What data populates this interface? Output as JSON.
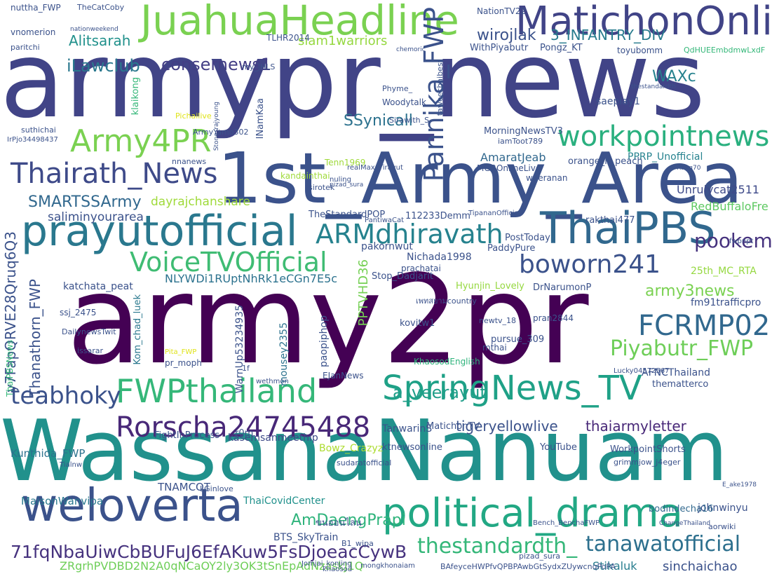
{
  "word_cloud": {
    "words": [
      {
        "text": "armypr_news",
        "color": "#414487"
      },
      {
        "text": "army2pr",
        "color": "#440154"
      },
      {
        "text": "WassanaNanuam",
        "color": "#21918c"
      },
      {
        "text": "1st_Army_Area",
        "color": "#3b528b"
      },
      {
        "text": "JuahuaHeadline",
        "color": "#7ad151"
      },
      {
        "text": "MatichonOnline",
        "color": "#414487"
      },
      {
        "text": "prayutofficial",
        "color": "#2a788e"
      },
      {
        "text": "ThaiPBS",
        "color": "#31688e"
      },
      {
        "text": "weloverta",
        "color": "#3b528b"
      },
      {
        "text": "political_drama",
        "color": "#22a884"
      },
      {
        "text": "FWPthailand",
        "color": "#35b779"
      },
      {
        "text": "SpringNews_TV",
        "color": "#1fa187"
      },
      {
        "text": "Rorscha24745488",
        "color": "#482878"
      },
      {
        "text": "workpointnews",
        "color": "#2ab07f"
      },
      {
        "text": "Army4PR",
        "color": "#7ad151"
      },
      {
        "text": "Thairath_News",
        "color": "#3e4a89"
      },
      {
        "text": "VoiceTVOfficial",
        "color": "#3fbc73"
      },
      {
        "text": "boworn241",
        "color": "#3b528b"
      },
      {
        "text": "ARMdhiravath",
        "color": "#26828e"
      },
      {
        "text": "FCRMP02",
        "color": "#31688e"
      },
      {
        "text": "Piyabutr_FWP",
        "color": "#6ece58"
      },
      {
        "text": "pookem",
        "color": "#46327e"
      },
      {
        "text": "teabhoky",
        "color": "#3b528b"
      },
      {
        "text": "Pannika_FWP",
        "color": "#3b528b"
      },
      {
        "text": "tanawatofficial",
        "color": "#2d708e"
      },
      {
        "text": "thestandardth_",
        "color": "#35b779"
      },
      {
        "text": "71fqNbaUiwCbBUFuJ6EfAKuw5FsDjoeacCywB",
        "color": "#46327e"
      },
      {
        "text": "a_veerayut",
        "color": "#1f9e89"
      },
      {
        "text": "AmDaengPrapi",
        "color": "#2fb47c"
      },
      {
        "text": "iLawclub",
        "color": "#2a788e"
      },
      {
        "text": "consernews1",
        "color": "#433e85"
      },
      {
        "text": "SSynicall",
        "color": "#2c728e"
      },
      {
        "text": "WAXc",
        "color": "#26828e"
      },
      {
        "text": "wirojlak",
        "color": "#3b528b"
      },
      {
        "text": "Alitsarah",
        "color": "#21918c"
      },
      {
        "text": "siam1warriors",
        "color": "#95d840"
      },
      {
        "text": "3_INFANTRY_DIV",
        "color": "#287c8e"
      },
      {
        "text": "army3news",
        "color": "#7ad151"
      },
      {
        "text": "SMARTSSArmy",
        "color": "#31688e"
      },
      {
        "text": "tigeryellowlive",
        "color": "#3b528b"
      },
      {
        "text": "thaiarmyletter",
        "color": "#482878"
      },
      {
        "text": "sinchaichao",
        "color": "#3b528b"
      },
      {
        "text": "Stikaluk",
        "color": "#287d8e"
      },
      {
        "text": "ZRgrhPVDBD2N2A0qNCaOY2ly3OK3tSnEpAdNzaskJ1Q",
        "color": "#6ece58"
      },
      {
        "text": "y7FapQRVE28Qruq6Q3",
        "color": "#3b528b"
      },
      {
        "text": "Thanathorn_FWP",
        "color": "#3b528b"
      },
      {
        "text": "NLYWDi1RUptNhRk1eCGn7E5c",
        "color": "#2c728e"
      },
      {
        "text": "PPTVHD36",
        "color": "#75d054"
      },
      {
        "text": "Unrulycat2511",
        "color": "#3e4a89"
      },
      {
        "text": "RedBuffaloFre",
        "color": "#5ec962"
      },
      {
        "text": "25th_MC_RTA",
        "color": "#95d840"
      },
      {
        "text": "fm91trafficpro",
        "color": "#3b528b"
      },
      {
        "text": "dayrajchanshare",
        "color": "#9fda3a"
      },
      {
        "text": "saliminyourarea",
        "color": "#3b528b"
      },
      {
        "text": "AmaratJeab",
        "color": "#31688e"
      },
      {
        "text": "PPRP_Unofficial",
        "color": "#26828e"
      },
      {
        "text": "Kunthida_FWP",
        "color": "#2c728e"
      },
      {
        "text": "MaisonWanvipa",
        "color": "#2a788e"
      },
      {
        "text": "johnwinyu",
        "color": "#3b528b"
      },
      {
        "text": "kasemsanmeethip",
        "color": "#3e4a89"
      },
      {
        "text": "TNAMCOT",
        "color": "#3b528b"
      },
      {
        "text": "BTS_SkyTrain",
        "color": "#3b528b"
      },
      {
        "text": "ThaiCovidCenter",
        "color": "#21918c"
      },
      {
        "text": "bodindecha16",
        "color": "#31688e"
      },
      {
        "text": "ktnewsonline",
        "color": "#3b528b"
      },
      {
        "text": "MatichonTV",
        "color": "#3b528b"
      },
      {
        "text": "TanwarinS",
        "color": "#3b528b"
      },
      {
        "text": "Bowz_Crazyz",
        "color": "#addc30"
      },
      {
        "text": "FightInProcess",
        "color": "#3b528b"
      },
      {
        "text": "YouTube",
        "color": "#3b528b"
      },
      {
        "text": "WorkpointShorts",
        "color": "#3b528b"
      },
      {
        "text": "AFNCThailand",
        "color": "#3b528b"
      },
      {
        "text": "thematterco",
        "color": "#3b528b"
      },
      {
        "text": "pursue_309",
        "color": "#3b528b"
      },
      {
        "text": "kovitw1",
        "color": "#3b528b"
      },
      {
        "text": "KhaosodEnglish",
        "color": "#2fb47c"
      },
      {
        "text": "DrNarumonP",
        "color": "#3b528b"
      },
      {
        "text": "Hyunjin_Lovely",
        "color": "#95d840"
      },
      {
        "text": "PaddyPure",
        "color": "#3b528b"
      },
      {
        "text": "PostToday",
        "color": "#3b528b"
      },
      {
        "text": "Nichada1998",
        "color": "#3b528b"
      },
      {
        "text": "pakornwut",
        "color": "#3b528b"
      },
      {
        "text": "Stop_Dadjarit",
        "color": "#3b528b"
      },
      {
        "text": "rakthai477",
        "color": "#3b528b"
      },
      {
        "text": "TheStandardPOP",
        "color": "#3b528b"
      },
      {
        "text": "112233Demm",
        "color": "#3b528b"
      },
      {
        "text": "sirotek",
        "color": "#3b528b"
      },
      {
        "text": "nuling",
        "color": "#3b528b"
      },
      {
        "text": "weeranan",
        "color": "#3b528b"
      },
      {
        "text": "orange_n_peach",
        "color": "#3b528b"
      },
      {
        "text": "MGROnlineLive",
        "color": "#3b528b"
      },
      {
        "text": "kandainthai",
        "color": "#9fda3a"
      },
      {
        "text": "Tenn1969",
        "color": "#9fda3a"
      },
      {
        "text": "katchata_peat",
        "color": "#3b528b"
      },
      {
        "text": "ssj_2475",
        "color": "#3b528b"
      },
      {
        "text": "issarar",
        "color": "#3b528b"
      },
      {
        "text": "pr_moph",
        "color": "#3b528b"
      },
      {
        "text": "Kom_chad_luek",
        "color": "#2a788e"
      },
      {
        "text": "WarnUp53234935",
        "color": "#3b528b"
      },
      {
        "text": "mousey2355",
        "color": "#2c728e"
      },
      {
        "text": "paopiphop",
        "color": "#3b528b"
      },
      {
        "text": "EJanNews",
        "color": "#3b528b"
      },
      {
        "text": "wethmon",
        "color": "#3b528b"
      },
      {
        "text": "1f",
        "color": "#3b528b"
      },
      {
        "text": "ThaiPBSNews",
        "color": "#35b779"
      },
      {
        "text": "Pita_FWP",
        "color": "#dfe318"
      },
      {
        "text": "nuttha_FWP",
        "color": "#3b528b"
      },
      {
        "text": "TheCatCoby",
        "color": "#3b528b"
      },
      {
        "text": "vnomerion",
        "color": "#3b528b"
      },
      {
        "text": "paritchi",
        "color": "#3b528b"
      },
      {
        "text": "nationweekend",
        "color": "#3b528b"
      },
      {
        "text": "TLHR2014",
        "color": "#3b528b"
      },
      {
        "text": "NationTV22",
        "color": "#3b528b"
      },
      {
        "text": "WithPiyabutr",
        "color": "#3b528b"
      },
      {
        "text": "Pongz_KT",
        "color": "#3b528b"
      },
      {
        "text": "toyubomm",
        "color": "#3b528b"
      },
      {
        "text": "QdHUEEmbdmwLxdF",
        "color": "#35b779"
      },
      {
        "text": "chemoric",
        "color": "#3b528b"
      },
      {
        "text": "my_JHLS",
        "color": "#3b528b"
      },
      {
        "text": "klaikong",
        "color": "#35b779"
      },
      {
        "text": "Phyme_",
        "color": "#3b528b"
      },
      {
        "text": "Woodytalk",
        "color": "#3b528b"
      },
      {
        "text": "iamToot789",
        "color": "#3b528b"
      },
      {
        "text": "saeplay1",
        "color": "#3b528b"
      },
      {
        "text": "MorningNewsTV3",
        "color": "#3b528b"
      },
      {
        "text": "Sirawith_S",
        "color": "#3b528b"
      },
      {
        "text": "taweechaibest",
        "color": "#3b528b"
      },
      {
        "text": "ArmyYamo302",
        "color": "#3b528b"
      },
      {
        "text": "INamKaa",
        "color": "#3b528b"
      },
      {
        "text": "suthichai",
        "color": "#3b528b"
      },
      {
        "text": "IrPjo34498437",
        "color": "#3b528b"
      },
      {
        "text": "nnanews",
        "color": "#3b528b"
      },
      {
        "text": "realMaxcTirayut",
        "color": "#3b528b"
      },
      {
        "text": "PantiwaCat",
        "color": "#3b528b"
      },
      {
        "text": "TipananOfficial",
        "color": "#3b528b"
      },
      {
        "text": "Rang70",
        "color": "#3b528b"
      },
      {
        "text": "prachatai",
        "color": "#3b528b"
      },
      {
        "text": "pran2844",
        "color": "#3b528b"
      },
      {
        "text": "newtv_18",
        "color": "#3b528b"
      },
      {
        "text": "mthai",
        "color": "#3b528b"
      },
      {
        "text": "Lucky04572567",
        "color": "#3b528b"
      },
      {
        "text": "DailynewsTwit",
        "color": "#3b528b"
      },
      {
        "text": "Tialnw",
        "color": "#3b528b"
      },
      {
        "text": "r0m",
        "color": "#3b528b"
      },
      {
        "text": "sudaratofficial",
        "color": "#3b528b"
      },
      {
        "text": "pizad_sura",
        "color": "#3b528b"
      },
      {
        "text": "mongkhonaiam",
        "color": "#3b528b"
      },
      {
        "text": "Jomjai_konjing",
        "color": "#3b528b"
      },
      {
        "text": "ขนออนไลน",
        "color": "#3b528b"
      },
      {
        "text": "aorwiki",
        "color": "#3b528b"
      },
      {
        "text": "E_ake1978",
        "color": "#3b528b"
      },
      {
        "text": "Bench_BenchaFWP",
        "color": "#3b528b"
      },
      {
        "text": "ChangeThailand",
        "color": "#3b528b"
      },
      {
        "text": "grimmjow_j4eger",
        "color": "#3b528b"
      },
      {
        "text": "fwpnpt",
        "color": "#3b528b"
      },
      {
        "text": "thestandardth",
        "color": "#3b528b"
      },
      {
        "text": "Pichailive",
        "color": "#dfe318"
      },
      {
        "text": "khaosod",
        "color": "#3b528b"
      },
      {
        "text": "B1_wipa",
        "color": "#3b528b"
      },
      {
        "text": "pizad_sura",
        "color": "#3b528b"
      },
      {
        "text": "BAfeyceHWPfvQPBPAwbGtSydxZUywcnqPoPA",
        "color": "#3b528b"
      },
      {
        "text": "LGinlove",
        "color": "#3b528b"
      },
      {
        "text": "เพทสยามcountry",
        "color": "#3b528b"
      },
      {
        "text": "Stone_rajyoung",
        "color": "#3b528b"
      }
    ]
  }
}
